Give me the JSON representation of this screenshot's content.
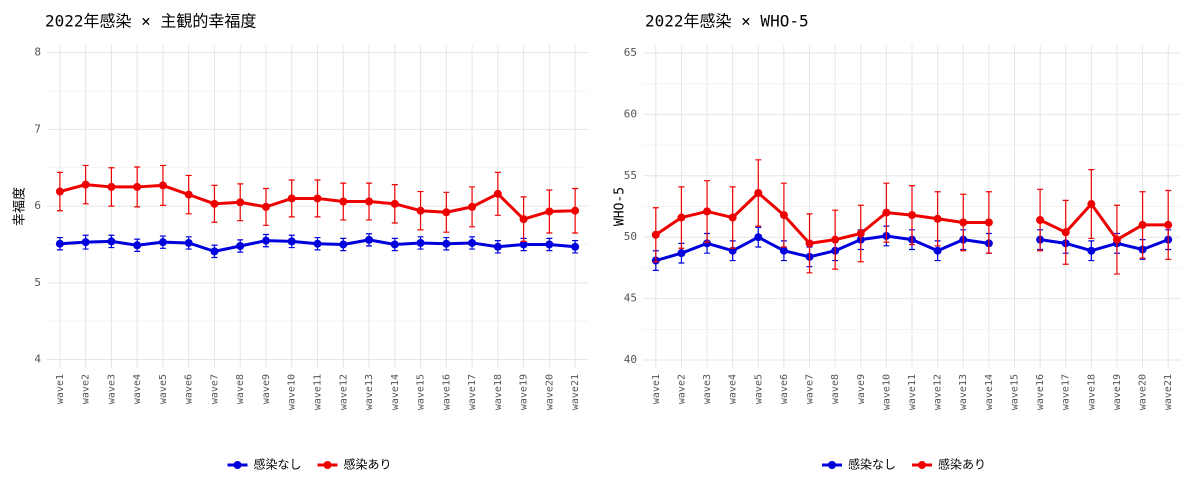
{
  "chart_data": [
    {
      "type": "line",
      "title": "2022年感染 × 主観的幸福度",
      "ylabel": "幸福度",
      "categories": [
        "wave1",
        "wave2",
        "wave3",
        "wave4",
        "wave5",
        "wave6",
        "wave7",
        "wave8",
        "wave9",
        "wave10",
        "wave11",
        "wave12",
        "wave13",
        "wave14",
        "wave15",
        "wave16",
        "wave17",
        "wave18",
        "wave19",
        "wave20",
        "wave21"
      ],
      "series": [
        {
          "name": "感染なし",
          "color": "#0000dd",
          "values": [
            5.51,
            5.53,
            5.54,
            5.49,
            5.53,
            5.52,
            5.41,
            5.48,
            5.55,
            5.54,
            5.51,
            5.5,
            5.56,
            5.5,
            5.52,
            5.51,
            5.52,
            5.47,
            5.5,
            5.5,
            5.47
          ],
          "errors": [
            0.08,
            0.09,
            0.08,
            0.08,
            0.08,
            0.08,
            0.08,
            0.08,
            0.08,
            0.08,
            0.08,
            0.08,
            0.08,
            0.08,
            0.08,
            0.08,
            0.08,
            0.08,
            0.08,
            0.08,
            0.08
          ]
        },
        {
          "name": "感染あり",
          "color": "#ee0000",
          "values": [
            6.19,
            6.28,
            6.25,
            6.25,
            6.27,
            6.15,
            6.03,
            6.05,
            5.99,
            6.1,
            6.1,
            6.06,
            6.06,
            6.03,
            5.94,
            5.92,
            5.99,
            6.16,
            5.83,
            5.93,
            5.94
          ],
          "errors": [
            0.25,
            0.25,
            0.25,
            0.26,
            0.26,
            0.25,
            0.24,
            0.24,
            0.24,
            0.24,
            0.24,
            0.24,
            0.24,
            0.25,
            0.25,
            0.26,
            0.26,
            0.28,
            0.29,
            0.28,
            0.29
          ]
        }
      ],
      "ylim": [
        3.89,
        8.1
      ],
      "yticks": [
        4,
        5,
        6,
        7,
        8
      ],
      "grid": true,
      "legend": "bottom"
    },
    {
      "type": "line",
      "title": "2022年感染 × WHO-5",
      "ylabel": "WHO-5",
      "categories": [
        "wave1",
        "wave2",
        "wave3",
        "wave4",
        "wave5",
        "wave6",
        "wave7",
        "wave8",
        "wave9",
        "wave10",
        "wave11",
        "wave12",
        "wave13",
        "wave14",
        "wave15",
        "wave16",
        "wave17",
        "wave18",
        "wave19",
        "wave20",
        "wave21"
      ],
      "series": [
        {
          "name": "感染なし",
          "color": "#0000dd",
          "values": [
            48.1,
            48.7,
            49.5,
            48.9,
            50.0,
            48.9,
            48.4,
            48.9,
            49.8,
            50.1,
            49.8,
            48.9,
            49.8,
            49.5,
            null,
            49.8,
            49.5,
            48.9,
            49.5,
            49.0,
            49.8
          ],
          "errors": [
            0.8,
            0.8,
            0.8,
            0.8,
            0.8,
            0.8,
            0.8,
            0.8,
            0.8,
            0.8,
            0.8,
            0.8,
            0.8,
            0.8,
            null,
            0.8,
            0.8,
            0.8,
            0.8,
            0.8,
            0.8
          ]
        },
        {
          "name": "感染あり",
          "color": "#ee0000",
          "values": [
            50.2,
            51.6,
            52.1,
            51.6,
            53.6,
            51.8,
            49.5,
            49.8,
            50.3,
            52.0,
            51.8,
            51.5,
            51.2,
            51.2,
            null,
            51.4,
            50.4,
            52.7,
            49.8,
            51.0,
            51.0
          ],
          "errors": [
            2.2,
            2.5,
            2.5,
            2.5,
            2.7,
            2.6,
            2.4,
            2.4,
            2.3,
            2.4,
            2.4,
            2.2,
            2.3,
            2.5,
            null,
            2.5,
            2.6,
            2.8,
            2.8,
            2.7,
            2.8
          ]
        }
      ],
      "ylim": [
        39.35,
        65.65
      ],
      "yticks": [
        40,
        45,
        50,
        55,
        60,
        65
      ],
      "grid": true,
      "legend": "bottom"
    }
  ]
}
